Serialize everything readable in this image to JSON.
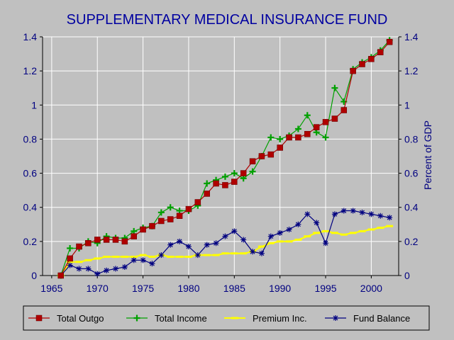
{
  "chart_data": {
    "type": "line",
    "title": "SUPPLEMENTARY MEDICAL INSURANCE FUND",
    "xlabel": "",
    "ylabel": "",
    "ylabel_right": "Percent of GDP",
    "xlim": [
      1964,
      2003
    ],
    "ylim": [
      0,
      1.4
    ],
    "x_ticks": [
      "1965",
      "1970",
      "1975",
      "1980",
      "1985",
      "1990",
      "1995",
      "2000"
    ],
    "y_ticks_left": [
      "0",
      "0.2",
      "0.4",
      "0.6",
      "0.8",
      "1",
      "1.2",
      "1.4"
    ],
    "y_ticks_right": [
      "0",
      "0.2",
      "0.4",
      "0.6",
      "0.8",
      "1",
      "1.2",
      "1.4"
    ],
    "grid": true,
    "legend_position": "bottom",
    "x": [
      1966,
      1967,
      1968,
      1969,
      1970,
      1971,
      1972,
      1973,
      1974,
      1975,
      1976,
      1977,
      1978,
      1979,
      1980,
      1981,
      1982,
      1983,
      1984,
      1985,
      1986,
      1987,
      1988,
      1989,
      1990,
      1991,
      1992,
      1993,
      1994,
      1995,
      1996,
      1997,
      1998,
      1999,
      2000,
      2001,
      2002
    ],
    "series": [
      {
        "name": "Total Outgo",
        "color": "#b00000",
        "marker": "square",
        "values": [
          0,
          0.1,
          0.17,
          0.19,
          0.21,
          0.21,
          0.21,
          0.2,
          0.23,
          0.27,
          0.29,
          0.32,
          0.33,
          0.35,
          0.39,
          0.43,
          0.48,
          0.54,
          0.53,
          0.55,
          0.6,
          0.67,
          0.7,
          0.71,
          0.75,
          0.81,
          0.81,
          0.83,
          0.87,
          0.9,
          0.92,
          0.97,
          1.2,
          1.24,
          1.27,
          1.31,
          1.37
        ]
      },
      {
        "name": "Total Income",
        "color": "#00a000",
        "marker": "plus",
        "values": [
          0,
          0.16,
          0.16,
          0.2,
          0.19,
          0.23,
          0.22,
          0.22,
          0.26,
          0.28,
          0.29,
          0.37,
          0.4,
          0.38,
          0.38,
          0.41,
          0.54,
          0.56,
          0.58,
          0.6,
          0.57,
          0.61,
          0.7,
          0.81,
          0.8,
          0.82,
          0.86,
          0.94,
          0.84,
          0.81,
          1.1,
          1.02,
          1.21,
          1.25,
          1.28,
          1.32,
          1.38
        ]
      },
      {
        "name": "Premium Inc.",
        "color": "#ffff00",
        "marker": "dash",
        "values": [
          0,
          0.08,
          0.08,
          0.09,
          0.1,
          0.11,
          0.11,
          0.11,
          0.11,
          0.12,
          0.11,
          0.12,
          0.11,
          0.11,
          0.11,
          0.12,
          0.12,
          0.12,
          0.13,
          0.13,
          0.13,
          0.14,
          0.17,
          0.19,
          0.2,
          0.2,
          0.21,
          0.23,
          0.25,
          0.26,
          0.25,
          0.24,
          0.25,
          0.26,
          0.27,
          0.28,
          0.29
        ]
      },
      {
        "name": "Fund Balance",
        "color": "#000080",
        "marker": "asterisk",
        "values": [
          0,
          0.06,
          0.04,
          0.04,
          0.01,
          0.03,
          0.04,
          0.05,
          0.09,
          0.09,
          0.07,
          0.12,
          0.18,
          0.2,
          0.17,
          0.12,
          0.18,
          0.19,
          0.23,
          0.26,
          0.21,
          0.14,
          0.13,
          0.23,
          0.25,
          0.27,
          0.3,
          0.36,
          0.31,
          0.19,
          0.36,
          0.38,
          0.38,
          0.37,
          0.36,
          0.35,
          0.34
        ]
      }
    ]
  }
}
